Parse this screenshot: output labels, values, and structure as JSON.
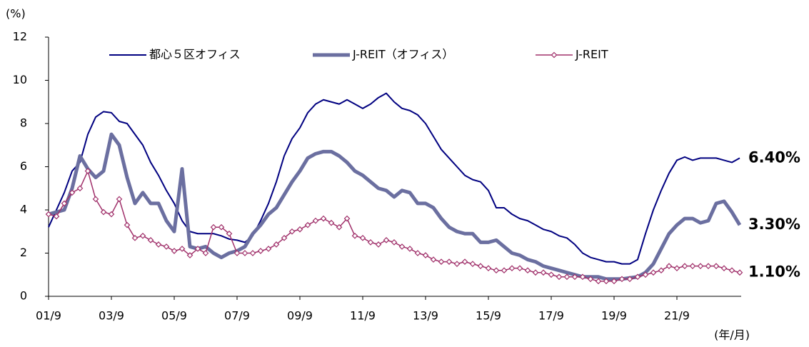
{
  "chart_data": {
    "type": "line",
    "y_axis_label": "(%)",
    "x_axis_label": "(年/月)",
    "categories": [
      "01/9",
      null,
      null,
      null,
      null,
      null,
      null,
      null,
      "03/9",
      null,
      null,
      null,
      null,
      null,
      null,
      null,
      "05/9",
      null,
      null,
      null,
      null,
      null,
      null,
      null,
      "07/9",
      null,
      null,
      null,
      null,
      null,
      null,
      null,
      "09/9",
      null,
      null,
      null,
      null,
      null,
      null,
      null,
      "11/9",
      null,
      null,
      null,
      null,
      null,
      null,
      null,
      "13/9",
      null,
      null,
      null,
      null,
      null,
      null,
      null,
      "15/9",
      null,
      null,
      null,
      null,
      null,
      null,
      null,
      "17/9",
      null,
      null,
      null,
      null,
      null,
      null,
      null,
      "19/9",
      null,
      null,
      null,
      null,
      null,
      null,
      null,
      "21/9",
      null,
      null,
      null,
      null,
      null,
      null,
      null,
      null
    ],
    "ylim": [
      0,
      12
    ],
    "yticks": [
      0,
      2,
      4,
      6,
      8,
      10,
      12
    ],
    "series": [
      {
        "name": "都心５区オフィス",
        "color": "#000080",
        "end_label": "6.40%",
        "label_color": "#1a1a6e",
        "values": [
          3.2,
          4.0,
          4.8,
          5.8,
          6.2,
          7.5,
          8.3,
          8.55,
          8.5,
          8.1,
          8.0,
          7.5,
          7.0,
          6.2,
          5.6,
          4.9,
          4.3,
          3.5,
          3.0,
          2.9,
          2.9,
          2.9,
          2.8,
          2.65,
          2.6,
          2.5,
          2.8,
          3.5,
          4.3,
          5.3,
          6.5,
          7.3,
          7.8,
          8.5,
          8.9,
          9.1,
          9.0,
          8.9,
          9.1,
          8.9,
          8.7,
          8.9,
          9.2,
          9.4,
          9.0,
          8.7,
          8.6,
          8.4,
          8.0,
          7.4,
          6.8,
          6.4,
          6.0,
          5.6,
          5.4,
          5.3,
          4.9,
          4.1,
          4.1,
          3.8,
          3.6,
          3.5,
          3.3,
          3.1,
          3.0,
          2.8,
          2.7,
          2.4,
          2.0,
          1.8,
          1.7,
          1.6,
          1.6,
          1.5,
          1.5,
          1.7,
          2.9,
          4.0,
          4.9,
          5.7,
          6.3,
          6.45,
          6.3,
          6.4,
          6.4,
          6.4,
          6.3,
          6.2,
          6.4
        ]
      },
      {
        "name": "J-REIT（オフィス）",
        "color": "#6b6fa0",
        "end_label": "3.30%",
        "label_color": "#2e3270",
        "values": [
          3.8,
          3.9,
          4.0,
          5.0,
          6.5,
          5.9,
          5.5,
          5.8,
          7.5,
          7.0,
          5.5,
          4.3,
          4.8,
          4.3,
          4.3,
          3.5,
          3.0,
          5.9,
          2.3,
          2.2,
          2.3,
          2.0,
          1.8,
          2.0,
          2.1,
          2.3,
          2.9,
          3.3,
          3.8,
          4.1,
          4.7,
          5.3,
          5.8,
          6.4,
          6.6,
          6.7,
          6.7,
          6.5,
          6.2,
          5.8,
          5.6,
          5.3,
          5.0,
          4.9,
          4.6,
          4.9,
          4.8,
          4.3,
          4.3,
          4.1,
          3.6,
          3.2,
          3.0,
          2.9,
          2.9,
          2.5,
          2.5,
          2.6,
          2.3,
          2.0,
          1.9,
          1.7,
          1.6,
          1.4,
          1.3,
          1.2,
          1.1,
          1.0,
          0.9,
          0.9,
          0.9,
          0.8,
          0.8,
          0.8,
          0.85,
          0.9,
          1.1,
          1.5,
          2.2,
          2.9,
          3.3,
          3.6,
          3.6,
          3.4,
          3.5,
          4.3,
          4.4,
          3.9,
          3.3
        ]
      },
      {
        "name": "J-REIT",
        "color": "#a0306a",
        "end_label": "1.10%",
        "label_color": "#6b1f6b",
        "marker": "diamond",
        "values": [
          3.8,
          3.7,
          4.3,
          4.8,
          5.0,
          5.8,
          4.5,
          3.9,
          3.8,
          4.5,
          3.3,
          2.7,
          2.8,
          2.6,
          2.4,
          2.3,
          2.1,
          2.2,
          1.9,
          2.2,
          2.0,
          3.2,
          3.2,
          2.9,
          2.0,
          2.0,
          2.0,
          2.1,
          2.2,
          2.4,
          2.7,
          3.0,
          3.1,
          3.3,
          3.5,
          3.6,
          3.4,
          3.2,
          3.6,
          2.8,
          2.7,
          2.5,
          2.4,
          2.6,
          2.5,
          2.3,
          2.2,
          2.0,
          1.9,
          1.7,
          1.6,
          1.6,
          1.5,
          1.6,
          1.5,
          1.4,
          1.3,
          1.2,
          1.2,
          1.3,
          1.3,
          1.2,
          1.1,
          1.1,
          1.0,
          0.9,
          0.9,
          0.9,
          0.9,
          0.8,
          0.7,
          0.7,
          0.7,
          0.8,
          0.8,
          0.9,
          1.0,
          1.1,
          1.2,
          1.4,
          1.3,
          1.4,
          1.4,
          1.4,
          1.4,
          1.4,
          1.3,
          1.2,
          1.1
        ]
      }
    ]
  }
}
